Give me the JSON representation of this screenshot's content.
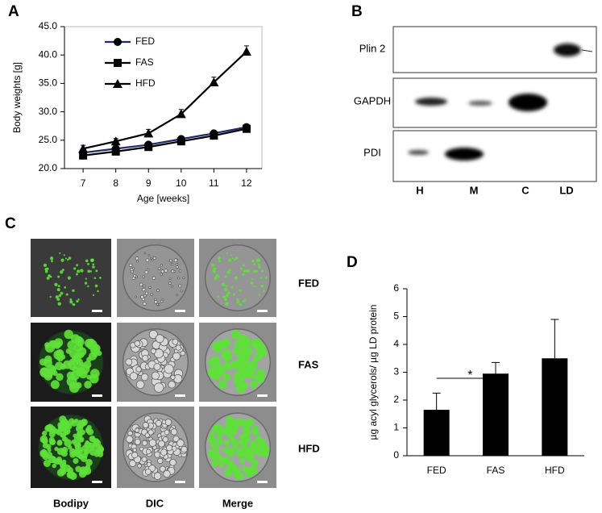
{
  "panels": [
    "A",
    "B",
    "C",
    "D"
  ],
  "chart_data": [
    {
      "type": "line",
      "x_label": "Age [weeks]",
      "y_label": "Body weights [g]",
      "x": [
        7,
        8,
        9,
        10,
        11,
        12
      ],
      "xlim": [
        6.43,
        12.47
      ],
      "xticks": [
        7,
        8,
        9,
        10,
        11,
        12
      ],
      "ylim": [
        20,
        45
      ],
      "yticks": [
        {
          "value": 20,
          "label": "20.0"
        },
        {
          "value": 25,
          "label": "25.0"
        },
        {
          "value": 30,
          "label": "30.0"
        },
        {
          "value": 35,
          "label": "35.0"
        },
        {
          "value": 40,
          "label": "40.0"
        },
        {
          "value": 45,
          "label": "45.0"
        }
      ],
      "legend": "upper left",
      "series": [
        {
          "name": "FED",
          "color": "#1f2a6b",
          "marker": "circle",
          "values": [
            22.8,
            23.5,
            24.2,
            25.2,
            26.2,
            27.3
          ],
          "errors": [
            0.3,
            0.3,
            0.4,
            0.4,
            0.4,
            0.5
          ]
        },
        {
          "name": "FAS",
          "color": "#000000",
          "marker": "square",
          "values": [
            22.3,
            23.0,
            23.8,
            24.8,
            25.8,
            27.0
          ],
          "errors": [
            0.3,
            0.3,
            0.4,
            0.4,
            0.4,
            0.5
          ]
        },
        {
          "name": "HFD",
          "color": "#000000",
          "marker": "triangle",
          "values": [
            23.5,
            24.8,
            26.2,
            29.6,
            35.2,
            40.6
          ],
          "errors": [
            0.6,
            0.5,
            0.7,
            0.8,
            0.9,
            1.0
          ]
        }
      ]
    },
    {
      "type": "bar",
      "y_label": "µg acyl glycerols/ µg LD protein",
      "categories": [
        "FED",
        "FAS",
        "HFD"
      ],
      "values": [
        1.65,
        2.95,
        3.5
      ],
      "errors": [
        0.6,
        0.4,
        1.4
      ],
      "color": "#000000",
      "ylim": [
        0,
        6
      ],
      "yticks": [
        0,
        1,
        2,
        3,
        4,
        5,
        6
      ],
      "annotation": "*"
    }
  ],
  "blot": {
    "rows": [
      "Plin 2",
      "GAPDH",
      "PDI"
    ],
    "lanes": [
      "H",
      "M",
      "C",
      "LD"
    ]
  },
  "microscopy": {
    "rows": [
      "FED",
      "FAS",
      "HFD"
    ],
    "columns": [
      "Bodipy",
      "DIC",
      "Merge"
    ]
  }
}
